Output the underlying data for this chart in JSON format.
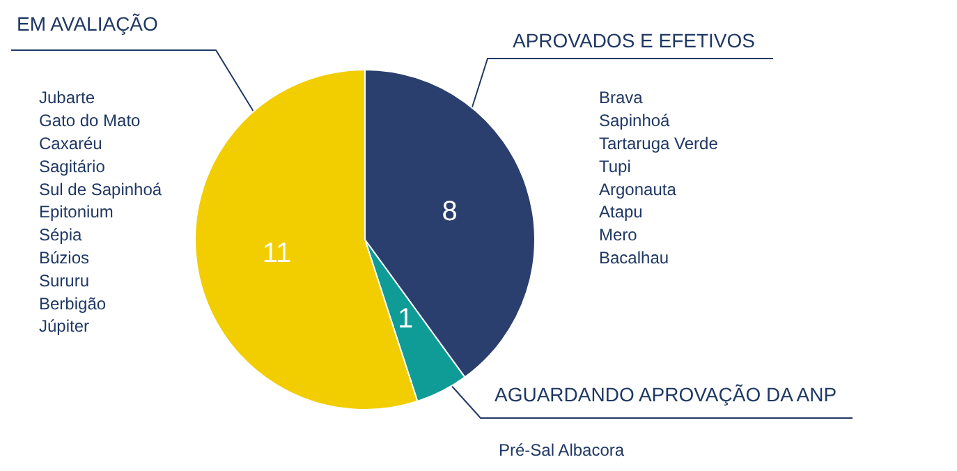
{
  "chart_data": {
    "type": "pie",
    "categories": [
      "APROVADOS E EFETIVOS",
      "AGUARDANDO APROVAÇÃO DA ANP",
      "EM AVALIAÇÃO"
    ],
    "values": [
      8,
      1,
      11
    ],
    "colors": [
      "#2b3f6e",
      "#0f9c96",
      "#f2cd00"
    ],
    "data_labels": true,
    "annotations": [
      "Brava\nSapinhoá\nTartaruga Verde\nTupi\nArgonauta\nAtapu\nMero\nBacalhau",
      "Pré-Sal Albacora",
      "Jubarte\nGato do Mato\nCaxaréu\nSagitário\nSul de Sapinhoá\nEpitonium\nSépia\nBúzios\nSururu\nBerbigão\nJúpiter"
    ]
  }
}
